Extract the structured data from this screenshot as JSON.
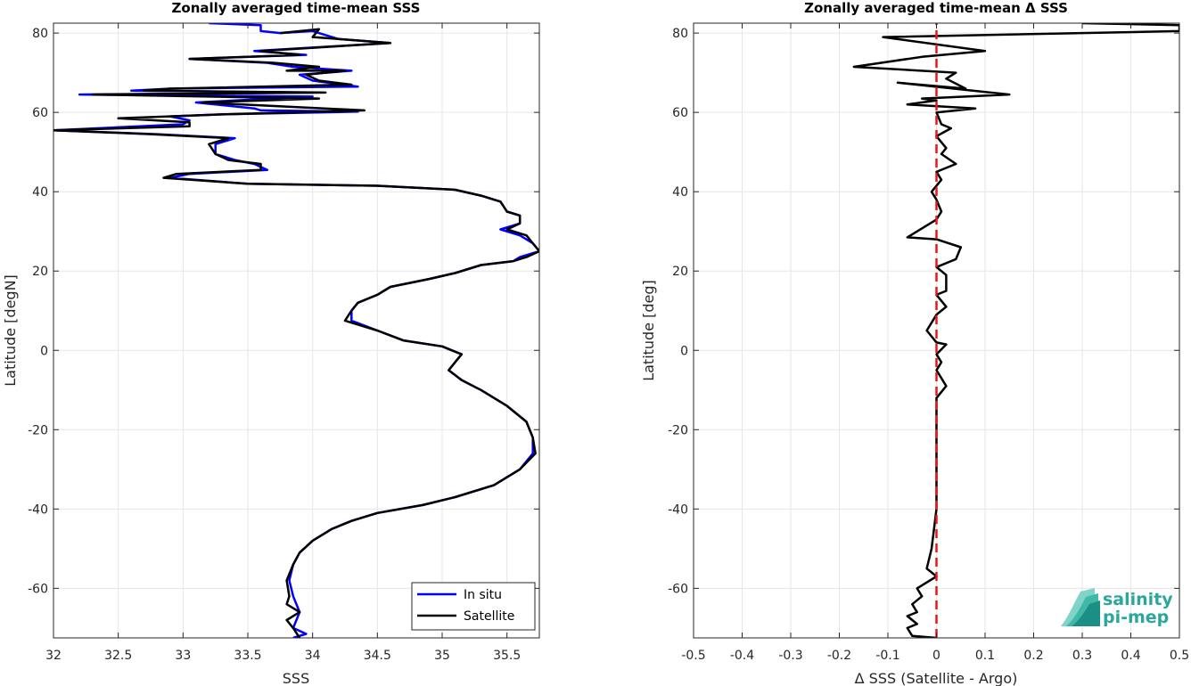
{
  "logo": {
    "line1": "salinity",
    "line2": "pi-mep",
    "color": "#2aa79b"
  },
  "chart_data": [
    {
      "type": "line",
      "title": "Zonally averaged time-mean SSS",
      "xlabel": "SSS",
      "ylabel": "Latitude [degN]",
      "xlim": [
        32,
        35.75
      ],
      "ylim": [
        -72.5,
        82.5
      ],
      "xticks": [
        32,
        32.5,
        33,
        33.5,
        34,
        34.5,
        35,
        35.5
      ],
      "yticks": [
        -60,
        -40,
        -20,
        0,
        20,
        40,
        60,
        80
      ],
      "grid": true,
      "legend_position": "bottom-right",
      "series": [
        {
          "name": "In situ",
          "color": "#0000ff",
          "points": [
            [
              33.2,
              82.5
            ],
            [
              33.6,
              82
            ],
            [
              33.6,
              80.5
            ],
            [
              33.75,
              80
            ],
            [
              34.0,
              80.5
            ],
            [
              34.2,
              78.5
            ],
            [
              34.6,
              77.5
            ],
            [
              33.55,
              75.5
            ],
            [
              33.95,
              74.5
            ],
            [
              33.05,
              73.5
            ],
            [
              33.65,
              72.5
            ],
            [
              33.85,
              71.5
            ],
            [
              34.3,
              70.5
            ],
            [
              33.9,
              69.5
            ],
            [
              34.0,
              68
            ],
            [
              34.35,
              66.5
            ],
            [
              32.9,
              66
            ],
            [
              32.6,
              65.5
            ],
            [
              34.0,
              65
            ],
            [
              32.2,
              64.5
            ],
            [
              34.0,
              64
            ],
            [
              33.1,
              62.5
            ],
            [
              33.55,
              61
            ],
            [
              33.6,
              60.5
            ],
            [
              34.35,
              60.2
            ],
            [
              33.3,
              59.5
            ],
            [
              32.9,
              59
            ],
            [
              33.05,
              58
            ],
            [
              33.0,
              57
            ],
            [
              32.0,
              55.5
            ],
            [
              32.8,
              54.5
            ],
            [
              33.4,
              53.5
            ],
            [
              33.25,
              52
            ],
            [
              33.25,
              49.5
            ],
            [
              33.4,
              48
            ],
            [
              33.55,
              47
            ],
            [
              33.65,
              45.5
            ],
            [
              33.05,
              44.5
            ],
            [
              32.9,
              43.5
            ],
            [
              33.5,
              42
            ],
            [
              34.5,
              41.5
            ],
            [
              35.1,
              40.5
            ],
            [
              35.3,
              39
            ],
            [
              35.45,
              37.5
            ],
            [
              35.5,
              35
            ],
            [
              35.6,
              34
            ],
            [
              35.6,
              32
            ],
            [
              35.45,
              30.5
            ],
            [
              35.6,
              29
            ],
            [
              35.7,
              27
            ],
            [
              35.75,
              25
            ],
            [
              35.6,
              23.5
            ],
            [
              35.55,
              22.5
            ],
            [
              35.3,
              21.5
            ],
            [
              35.1,
              19.5
            ],
            [
              34.9,
              18
            ],
            [
              34.6,
              16
            ],
            [
              34.5,
              14
            ],
            [
              34.35,
              12
            ],
            [
              34.3,
              10
            ],
            [
              34.3,
              7.5
            ],
            [
              34.5,
              5
            ],
            [
              34.7,
              2.5
            ],
            [
              35.0,
              1
            ],
            [
              35.15,
              -1
            ],
            [
              35.1,
              -3
            ],
            [
              35.05,
              -5
            ],
            [
              35.15,
              -7.5
            ],
            [
              35.3,
              -10
            ],
            [
              35.5,
              -14
            ],
            [
              35.65,
              -18
            ],
            [
              35.7,
              -22
            ],
            [
              35.7,
              -26
            ],
            [
              35.6,
              -30
            ],
            [
              35.4,
              -34
            ],
            [
              35.1,
              -37
            ],
            [
              34.85,
              -39
            ],
            [
              34.5,
              -41
            ],
            [
              34.3,
              -43
            ],
            [
              34.15,
              -45
            ],
            [
              34.0,
              -48
            ],
            [
              33.9,
              -51
            ],
            [
              33.85,
              -54
            ],
            [
              33.82,
              -58
            ],
            [
              33.85,
              -62
            ],
            [
              33.9,
              -66
            ],
            [
              33.85,
              -70
            ],
            [
              33.95,
              -71.5
            ],
            [
              33.85,
              -72.5
            ]
          ]
        },
        {
          "name": "Satellite",
          "color": "#000000",
          "points": [
            [
              33.75,
              80
            ],
            [
              34.05,
              81
            ],
            [
              34.0,
              79
            ],
            [
              34.2,
              78.5
            ],
            [
              34.6,
              77.5
            ],
            [
              33.6,
              75.5
            ],
            [
              33.9,
              74.5
            ],
            [
              33.05,
              73.5
            ],
            [
              33.7,
              72.5
            ],
            [
              34.05,
              71.5
            ],
            [
              33.8,
              70.5
            ],
            [
              34.25,
              70.5
            ],
            [
              33.95,
              69.5
            ],
            [
              34.05,
              68
            ],
            [
              34.3,
              67
            ],
            [
              32.9,
              66
            ],
            [
              32.7,
              65.5
            ],
            [
              34.1,
              65
            ],
            [
              32.3,
              64.5
            ],
            [
              34.05,
              63.5
            ],
            [
              33.15,
              62.5
            ],
            [
              34.4,
              60.5
            ],
            [
              33.3,
              59.5
            ],
            [
              32.9,
              59
            ],
            [
              32.5,
              58.5
            ],
            [
              33.05,
              57.5
            ],
            [
              33.05,
              56.5
            ],
            [
              32.0,
              55.5
            ],
            [
              32.75,
              54.5
            ],
            [
              33.35,
              53.5
            ],
            [
              33.2,
              52
            ],
            [
              33.25,
              49.5
            ],
            [
              33.35,
              48
            ],
            [
              33.6,
              47
            ],
            [
              33.6,
              45.5
            ],
            [
              32.95,
              44.5
            ],
            [
              32.85,
              43.5
            ],
            [
              33.5,
              42
            ],
            [
              34.5,
              41.5
            ],
            [
              35.1,
              40.5
            ],
            [
              35.3,
              39
            ],
            [
              35.45,
              37.5
            ],
            [
              35.5,
              35
            ],
            [
              35.6,
              34
            ],
            [
              35.6,
              32
            ],
            [
              35.5,
              30.5
            ],
            [
              35.65,
              29
            ],
            [
              35.7,
              27
            ],
            [
              35.75,
              25
            ],
            [
              35.65,
              23.5
            ],
            [
              35.55,
              22.5
            ],
            [
              35.3,
              21.5
            ],
            [
              35.1,
              19.5
            ],
            [
              34.9,
              18
            ],
            [
              34.6,
              16
            ],
            [
              34.5,
              14
            ],
            [
              34.35,
              12
            ],
            [
              34.3,
              10
            ],
            [
              34.25,
              7.5
            ],
            [
              34.5,
              5
            ],
            [
              34.7,
              2.5
            ],
            [
              35.0,
              1
            ],
            [
              35.15,
              -1
            ],
            [
              35.1,
              -3
            ],
            [
              35.05,
              -5
            ],
            [
              35.15,
              -7.5
            ],
            [
              35.3,
              -10
            ],
            [
              35.5,
              -14
            ],
            [
              35.65,
              -18
            ],
            [
              35.7,
              -22
            ],
            [
              35.72,
              -26
            ],
            [
              35.6,
              -30
            ],
            [
              35.4,
              -34
            ],
            [
              35.1,
              -37
            ],
            [
              34.85,
              -39
            ],
            [
              34.5,
              -41
            ],
            [
              34.3,
              -43
            ],
            [
              34.15,
              -45
            ],
            [
              34.0,
              -48
            ],
            [
              33.9,
              -51
            ],
            [
              33.85,
              -54
            ],
            [
              33.8,
              -58
            ],
            [
              33.82,
              -62
            ],
            [
              33.8,
              -64
            ],
            [
              33.9,
              -66
            ],
            [
              33.8,
              -68
            ],
            [
              33.85,
              -70
            ],
            [
              33.9,
              -72.5
            ]
          ]
        }
      ]
    },
    {
      "type": "line",
      "title": "Zonally averaged time-mean Δ SSS",
      "xlabel": "Δ SSS (Satellite - Argo)",
      "ylabel": "Latitude [deg]",
      "xlim": [
        -0.5,
        0.5
      ],
      "ylim": [
        -72.5,
        82.5
      ],
      "xticks": [
        -0.5,
        -0.4,
        -0.3,
        -0.2,
        -0.1,
        0,
        0.1,
        0.2,
        0.3,
        0.4,
        0.5
      ],
      "yticks": [
        -60,
        -40,
        -20,
        0,
        20,
        40,
        60,
        80
      ],
      "grid": true,
      "series": [
        {
          "color": "#000000",
          "points": [
            [
              0.3,
              82.5
            ],
            [
              0.5,
              82
            ],
            [
              0.5,
              80.5
            ],
            [
              -0.11,
              79
            ],
            [
              0.1,
              75.5
            ],
            [
              -0.03,
              74
            ],
            [
              -0.17,
              71.5
            ],
            [
              0.04,
              70
            ],
            [
              0.02,
              68.5
            ],
            [
              0.06,
              66
            ],
            [
              -0.08,
              67.5
            ],
            [
              0.15,
              64.5
            ],
            [
              -0.03,
              63.5
            ],
            [
              0.0,
              63
            ],
            [
              -0.06,
              62
            ],
            [
              0.08,
              61
            ],
            [
              0.0,
              60
            ],
            [
              0.01,
              57
            ],
            [
              0.03,
              56
            ],
            [
              0.0,
              54
            ],
            [
              0.02,
              51
            ],
            [
              0.01,
              49.5
            ],
            [
              0.04,
              47
            ],
            [
              0.0,
              45
            ],
            [
              0.01,
              43
            ],
            [
              -0.01,
              40
            ],
            [
              0.0,
              38
            ],
            [
              0.01,
              35
            ],
            [
              0.0,
              33
            ],
            [
              -0.06,
              28.5
            ],
            [
              0.0,
              28
            ],
            [
              0.05,
              26
            ],
            [
              0.04,
              23
            ],
            [
              0.0,
              21
            ],
            [
              0.02,
              19
            ],
            [
              0.02,
              15
            ],
            [
              0.0,
              14
            ],
            [
              0.02,
              11
            ],
            [
              0.0,
              9
            ],
            [
              -0.02,
              5
            ],
            [
              0.0,
              2
            ],
            [
              0.02,
              1.5
            ],
            [
              0.0,
              -1
            ],
            [
              0.01,
              -3
            ],
            [
              0.0,
              -5
            ],
            [
              0.02,
              -9
            ],
            [
              0.0,
              -12
            ],
            [
              0.0,
              -20
            ],
            [
              0.0,
              -30
            ],
            [
              0.0,
              -40
            ],
            [
              -0.01,
              -50
            ],
            [
              -0.02,
              -55
            ],
            [
              0.0,
              -57
            ],
            [
              -0.04,
              -60
            ],
            [
              -0.03,
              -62
            ],
            [
              -0.05,
              -64
            ],
            [
              -0.04,
              -66
            ],
            [
              -0.06,
              -67
            ],
            [
              -0.04,
              -69
            ],
            [
              -0.06,
              -70
            ],
            [
              -0.05,
              -72
            ],
            [
              0.0,
              -72.5
            ]
          ]
        },
        {
          "color": "#e31a1c",
          "dashed": true,
          "points": [
            [
              0,
              -72.5
            ],
            [
              0,
              82.5
            ]
          ]
        }
      ]
    }
  ]
}
